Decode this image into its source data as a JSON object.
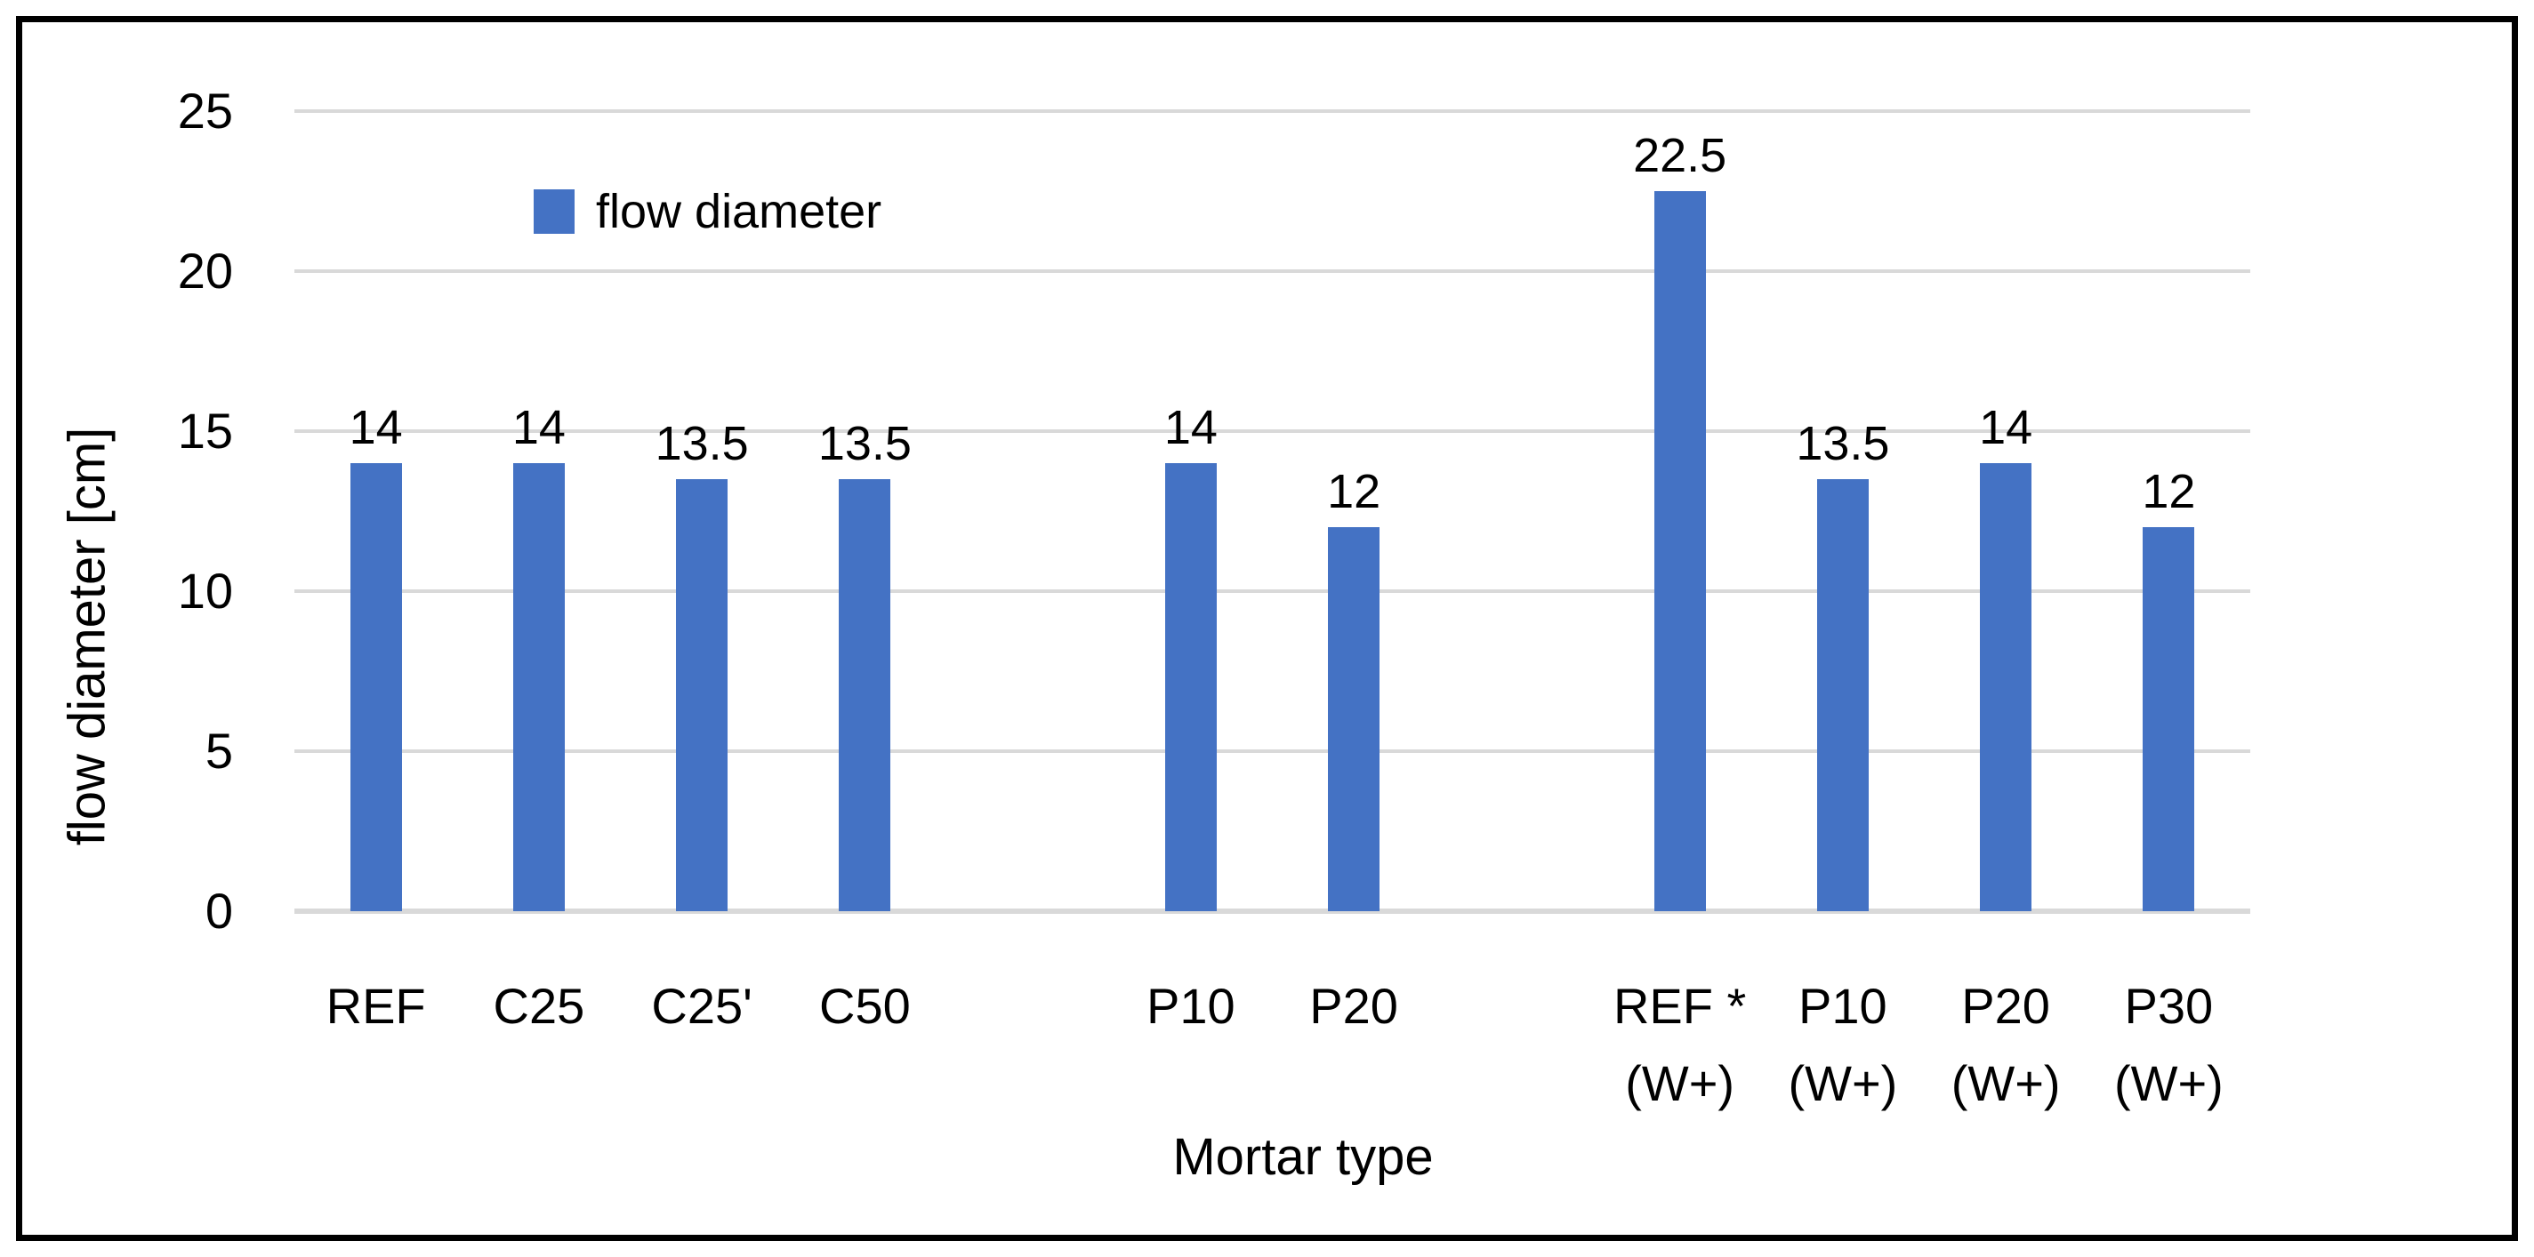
{
  "chart_data": {
    "type": "bar",
    "title": "",
    "xlabel": "Mortar type",
    "ylabel": "flow diameter [cm]",
    "legend": [
      {
        "label": "flow diameter",
        "color": "#4472C4"
      }
    ],
    "legend_position": "inside-top-left",
    "ylim": [
      0,
      25
    ],
    "yticks": [
      0,
      5,
      10,
      15,
      20,
      25
    ],
    "grid": true,
    "categories": [
      "REF",
      "C25",
      "C25'",
      "C50",
      "",
      "P10",
      "P20",
      "",
      "REF *\n(W+)",
      "P10\n(W+)",
      "P20\n(W+)",
      "P30\n(W+)"
    ],
    "values": [
      14,
      14,
      13.5,
      13.5,
      null,
      14,
      12,
      null,
      22.5,
      13.5,
      14,
      12
    ],
    "value_labels": [
      "14",
      "14",
      "13.5",
      "13.5",
      "",
      "14",
      "12",
      "",
      "22.5",
      "13.5",
      "14",
      "12"
    ],
    "series_name": "flow diameter",
    "colors": {
      "bar": "#4472C4",
      "gridline": "#D9D9D9",
      "axis_line": "#D9D9D9",
      "text": "#000000",
      "frame_border": "#000000",
      "background": "#FFFFFF"
    }
  }
}
